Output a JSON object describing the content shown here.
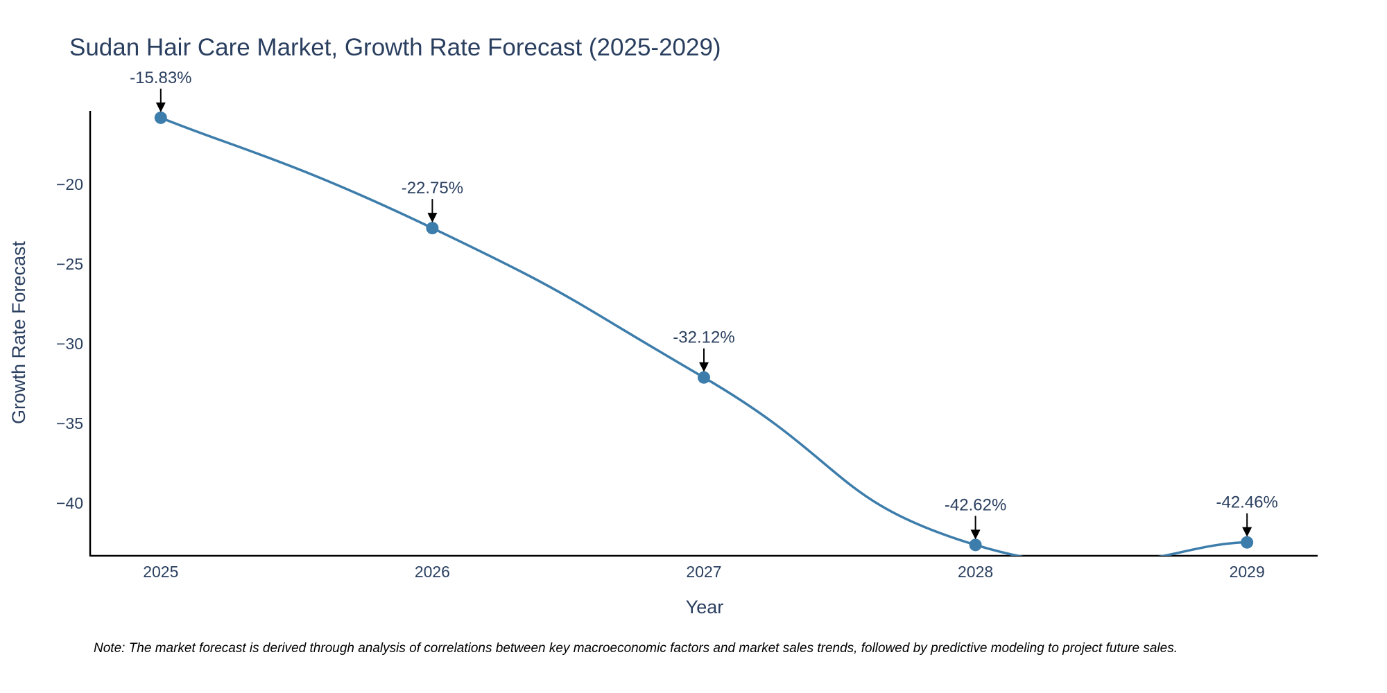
{
  "chart_data": {
    "type": "line",
    "title": "Sudan Hair Care Market, Growth Rate Forecast (2025-2029)",
    "xlabel": "Year",
    "ylabel": "Growth Rate Forecast",
    "categories": [
      "2025",
      "2026",
      "2027",
      "2028",
      "2029"
    ],
    "values": [
      -15.83,
      -22.75,
      -32.12,
      -42.62,
      -42.46
    ],
    "labels": [
      "-15.83%",
      "-22.75%",
      "-32.12%",
      "-42.62%",
      "-42.46%"
    ],
    "yticks": [
      -20,
      -25,
      -30,
      -35,
      -40
    ],
    "ytick_labels": [
      "−20",
      "−25",
      "−30",
      "−35",
      "−40"
    ],
    "ylim": [
      -43.3,
      -15.4
    ],
    "xlim": [
      2024.74,
      2029.26
    ],
    "line_color": "#3d7dab",
    "marker_color": "#3d7dab",
    "grid": false,
    "note": "Note: The market forecast is derived through analysis of correlations between key macroeconomic factors and market sales trends, followed by predictive modeling to project future sales."
  }
}
